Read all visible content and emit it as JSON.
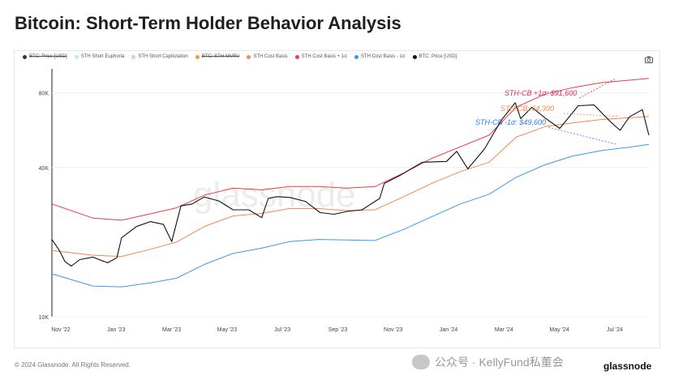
{
  "title": "Bitcoin: Short-Term Holder Behavior Analysis",
  "footer": "© 2024 Glassnode. All Rights Reserved.",
  "wechat_text": "公众号 · KellyFund私董会",
  "brand": "glassnode",
  "watermark": "glassnode",
  "legend": [
    {
      "label": "BTC: Price [USD]",
      "color": "#333333",
      "struck": true
    },
    {
      "label": "STH Short Euphoria",
      "color": "#b8ebe2",
      "struck": false
    },
    {
      "label": "STH Short Capitulation",
      "color": "#f7c3bd",
      "struck": false
    },
    {
      "label": "BTC: STH-MVRV",
      "color": "#f29a3a",
      "struck": true
    },
    {
      "label": "STH Cost Basis",
      "color": "#f7874d",
      "struck": false
    },
    {
      "label": "STH Cost Basis + 1σ",
      "color": "#ee3b48",
      "struck": false
    },
    {
      "label": "STH Cost Basis - 1σ",
      "color": "#3d99e6",
      "struck": false
    },
    {
      "label": "BTC: Price [USD]",
      "color": "#111111",
      "struck": false
    }
  ],
  "annotations": {
    "upper": "STH-CB +1σ: $91,600",
    "mid": "STH-CB: 64,300",
    "lower": "STH-CB -1σ: $49,600"
  },
  "colors": {
    "price": "#111111",
    "upper": "#ee3b48",
    "mid": "#f7874d",
    "lower": "#3d99e6"
  },
  "chart_data": {
    "type": "line",
    "title": "Bitcoin: Short-Term Holder Behavior Analysis",
    "y_scale": "log",
    "ylim": [
      10000,
      100000
    ],
    "y_ticks": [
      {
        "value": 10000,
        "label": "10K"
      },
      {
        "value": 40000,
        "label": "40K"
      },
      {
        "value": 80000,
        "label": "80K"
      }
    ],
    "x_ticks": [
      "Nov '22",
      "Jan '23",
      "Mar '23",
      "May '23",
      "Jul '23",
      "Sep '23",
      "Nov '23",
      "Jan '24",
      "Mar '24",
      "May '24",
      "Jul '24"
    ],
    "x_start": "2022-11-01",
    "x_end": "2024-08-05",
    "series": [
      {
        "name": "BTC: Price [USD]",
        "points": [
          [
            "2022-11-01",
            20500
          ],
          [
            "2022-11-09",
            18500
          ],
          [
            "2022-11-15",
            16700
          ],
          [
            "2022-11-22",
            16000
          ],
          [
            "2022-12-01",
            17000
          ],
          [
            "2022-12-15",
            17400
          ],
          [
            "2022-12-31",
            16500
          ],
          [
            "2023-01-10",
            17300
          ],
          [
            "2023-01-15",
            20800
          ],
          [
            "2023-01-31",
            23100
          ],
          [
            "2023-02-15",
            24200
          ],
          [
            "2023-03-01",
            23600
          ],
          [
            "2023-03-10",
            20100
          ],
          [
            "2023-03-20",
            28000
          ],
          [
            "2023-04-01",
            28500
          ],
          [
            "2023-04-14",
            30400
          ],
          [
            "2023-04-30",
            29300
          ],
          [
            "2023-05-15",
            27000
          ],
          [
            "2023-06-01",
            27000
          ],
          [
            "2023-06-15",
            25100
          ],
          [
            "2023-06-22",
            30000
          ],
          [
            "2023-07-01",
            30500
          ],
          [
            "2023-07-15",
            30300
          ],
          [
            "2023-08-01",
            29200
          ],
          [
            "2023-08-17",
            26300
          ],
          [
            "2023-09-01",
            25900
          ],
          [
            "2023-09-15",
            26600
          ],
          [
            "2023-10-01",
            27000
          ],
          [
            "2023-10-20",
            30000
          ],
          [
            "2023-10-25",
            34500
          ],
          [
            "2023-11-10",
            37000
          ],
          [
            "2023-12-05",
            42000
          ],
          [
            "2023-12-31",
            42300
          ],
          [
            "2024-01-11",
            46500
          ],
          [
            "2024-01-23",
            39500
          ],
          [
            "2024-02-10",
            47500
          ],
          [
            "2024-02-28",
            62000
          ],
          [
            "2024-03-14",
            73000
          ],
          [
            "2024-03-20",
            63000
          ],
          [
            "2024-04-01",
            70000
          ],
          [
            "2024-04-15",
            63500
          ],
          [
            "2024-05-01",
            57500
          ],
          [
            "2024-05-21",
            71000
          ],
          [
            "2024-06-07",
            71500
          ],
          [
            "2024-06-25",
            61000
          ],
          [
            "2024-07-05",
            56500
          ],
          [
            "2024-07-15",
            64000
          ],
          [
            "2024-07-29",
            68500
          ],
          [
            "2024-08-05",
            54000
          ]
        ]
      },
      {
        "name": "STH Cost Basis + 1σ",
        "points": [
          [
            "2022-11-01",
            28500
          ],
          [
            "2022-12-15",
            25000
          ],
          [
            "2023-01-15",
            24500
          ],
          [
            "2023-02-15",
            26000
          ],
          [
            "2023-03-15",
            27500
          ],
          [
            "2023-04-15",
            31000
          ],
          [
            "2023-05-15",
            33000
          ],
          [
            "2023-06-15",
            32500
          ],
          [
            "2023-07-15",
            33500
          ],
          [
            "2023-08-15",
            33500
          ],
          [
            "2023-09-15",
            33000
          ],
          [
            "2023-10-15",
            33500
          ],
          [
            "2023-11-15",
            38000
          ],
          [
            "2023-12-15",
            43500
          ],
          [
            "2024-01-15",
            48500
          ],
          [
            "2024-02-15",
            54000
          ],
          [
            "2024-03-15",
            70000
          ],
          [
            "2024-04-15",
            79000
          ],
          [
            "2024-05-15",
            84000
          ],
          [
            "2024-06-15",
            88000
          ],
          [
            "2024-07-15",
            90000
          ],
          [
            "2024-08-05",
            91600
          ]
        ]
      },
      {
        "name": "STH Cost Basis",
        "points": [
          [
            "2022-11-01",
            18500
          ],
          [
            "2022-12-15",
            17700
          ],
          [
            "2023-01-15",
            17500
          ],
          [
            "2023-02-15",
            18700
          ],
          [
            "2023-03-15",
            20000
          ],
          [
            "2023-04-15",
            23200
          ],
          [
            "2023-05-15",
            25500
          ],
          [
            "2023-06-15",
            26100
          ],
          [
            "2023-07-15",
            27300
          ],
          [
            "2023-08-15",
            27300
          ],
          [
            "2023-09-15",
            26800
          ],
          [
            "2023-10-15",
            27000
          ],
          [
            "2023-11-15",
            30500
          ],
          [
            "2023-12-15",
            34500
          ],
          [
            "2024-01-15",
            38500
          ],
          [
            "2024-02-15",
            42000
          ],
          [
            "2024-03-15",
            53000
          ],
          [
            "2024-04-15",
            58500
          ],
          [
            "2024-05-15",
            60500
          ],
          [
            "2024-06-15",
            62500
          ],
          [
            "2024-07-15",
            63500
          ],
          [
            "2024-08-05",
            64300
          ]
        ]
      },
      {
        "name": "STH Cost Basis - 1σ",
        "points": [
          [
            "2022-11-01",
            14900
          ],
          [
            "2022-12-15",
            13300
          ],
          [
            "2023-01-15",
            13200
          ],
          [
            "2023-02-15",
            13700
          ],
          [
            "2023-03-15",
            14300
          ],
          [
            "2023-04-15",
            16300
          ],
          [
            "2023-05-15",
            18000
          ],
          [
            "2023-06-15",
            18900
          ],
          [
            "2023-07-15",
            20100
          ],
          [
            "2023-08-15",
            20500
          ],
          [
            "2023-09-15",
            20400
          ],
          [
            "2023-10-15",
            20300
          ],
          [
            "2023-11-15",
            22500
          ],
          [
            "2023-12-15",
            25300
          ],
          [
            "2024-01-15",
            28500
          ],
          [
            "2024-02-15",
            31200
          ],
          [
            "2024-03-15",
            36500
          ],
          [
            "2024-04-15",
            41000
          ],
          [
            "2024-05-15",
            44500
          ],
          [
            "2024-06-15",
            46800
          ],
          [
            "2024-07-15",
            48300
          ],
          [
            "2024-08-05",
            49600
          ]
        ]
      }
    ]
  }
}
